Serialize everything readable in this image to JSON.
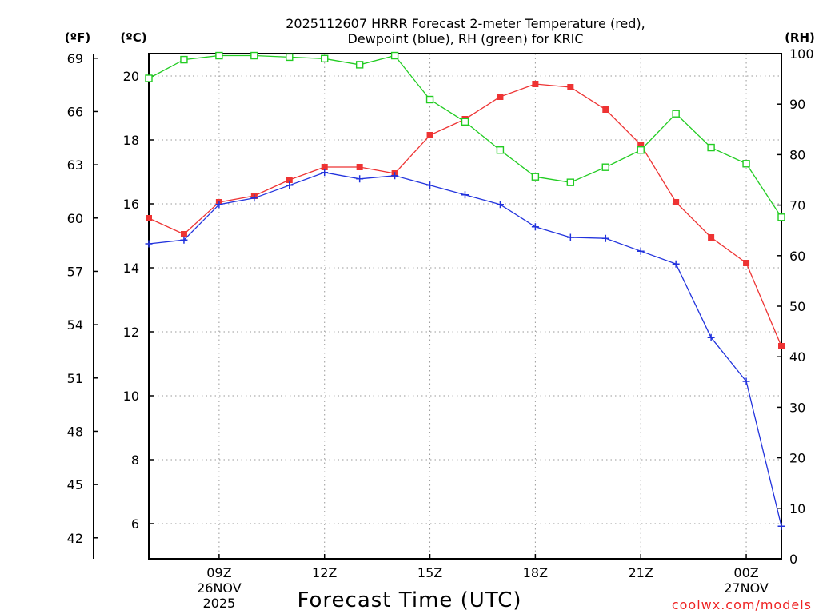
{
  "chart_data": {
    "type": "line",
    "title_line1": "2025112607 HRRR Forecast 2-meter Temperature (red),",
    "title_line2": "Dewpoint (blue), RH (green) for KRIC",
    "xlabel": "Forecast Time (UTC)",
    "left_outer_label": "(ºF)",
    "left_inner_label": "(ºC)",
    "right_label": "(RH)",
    "watermark": "coolwx.com/models",
    "x_hours": [
      7,
      8,
      9,
      10,
      11,
      12,
      13,
      14,
      15,
      16,
      17,
      18,
      19,
      20,
      21,
      22,
      23,
      24,
      25
    ],
    "x_tick_hours": [
      9,
      12,
      15,
      18,
      21,
      24
    ],
    "x_tick_labels": [
      "09Z",
      "12Z",
      "15Z",
      "18Z",
      "21Z",
      "00Z"
    ],
    "x_date_labels": [
      {
        "hour": 9,
        "lines": [
          "26NOV",
          "2025"
        ]
      },
      {
        "hour": 24,
        "lines": [
          "27NOV"
        ]
      }
    ],
    "xlim": [
      7,
      25
    ],
    "celsius_ticks": [
      6,
      8,
      10,
      12,
      14,
      16,
      18,
      20
    ],
    "celsius_lim": [
      4.9,
      20.7
    ],
    "fahrenheit_ticks": [
      42,
      45,
      48,
      51,
      54,
      57,
      60,
      63,
      66,
      69
    ],
    "rh_ticks": [
      0,
      10,
      20,
      30,
      40,
      50,
      60,
      70,
      80,
      90,
      100
    ],
    "rh_lim": [
      0,
      100
    ],
    "series": [
      {
        "name": "2-meter Temperature",
        "axis": "celsius",
        "color": "#ee3333",
        "marker": "filled-square",
        "values": [
          15.55,
          15.05,
          16.05,
          16.25,
          16.75,
          17.15,
          17.15,
          16.95,
          18.15,
          18.65,
          19.35,
          19.75,
          19.65,
          18.95,
          17.85,
          16.05,
          14.95,
          14.15,
          11.55
        ]
      },
      {
        "name": "Dewpoint",
        "axis": "celsius",
        "color": "#2233dd",
        "marker": "plus",
        "values": [
          14.75,
          14.87,
          15.98,
          16.18,
          16.58,
          16.98,
          16.78,
          16.88,
          16.58,
          16.28,
          15.98,
          15.28,
          14.95,
          14.92,
          14.52,
          14.12,
          11.82,
          10.45,
          5.92
        ]
      },
      {
        "name": "RH",
        "axis": "rh",
        "color": "#22cc22",
        "marker": "open-square",
        "values": [
          95.1,
          98.8,
          99.6,
          99.6,
          99.3,
          99.0,
          97.8,
          99.6,
          90.9,
          86.5,
          80.9,
          75.6,
          74.5,
          77.5,
          80.9,
          88.1,
          81.4,
          78.2,
          67.6
        ]
      }
    ]
  }
}
